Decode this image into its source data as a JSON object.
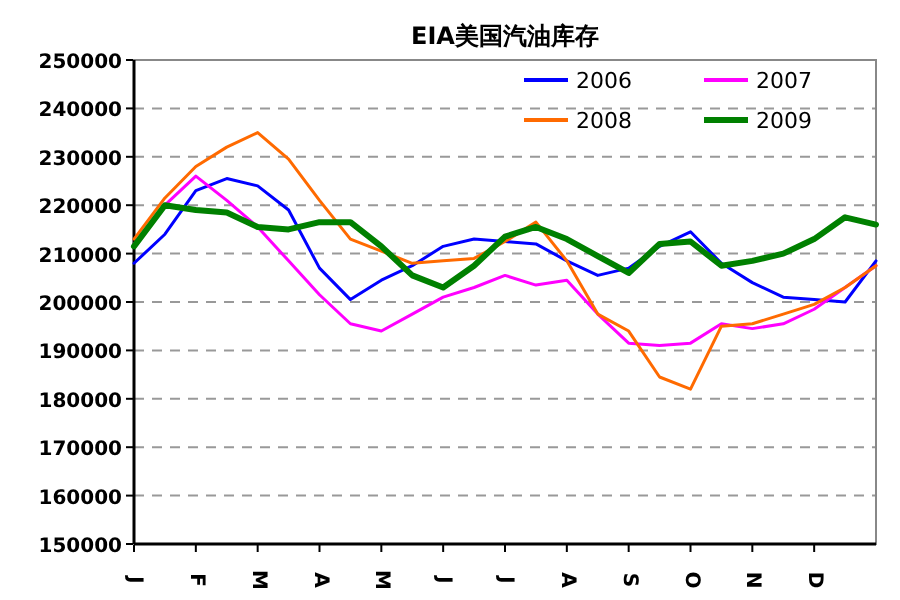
{
  "chart_data": {
    "type": "line",
    "title": "EIA美国汽油库存",
    "categories": [
      "J",
      null,
      "F",
      null,
      "M",
      null,
      "A",
      null,
      "M",
      null,
      "J",
      null,
      "J",
      null,
      "A",
      null,
      "S",
      null,
      "O",
      null,
      "N",
      null,
      "D",
      null,
      null
    ],
    "ylim": [
      150000,
      250000
    ],
    "yticks": [
      150000,
      160000,
      170000,
      180000,
      190000,
      200000,
      210000,
      220000,
      230000,
      240000,
      250000
    ],
    "grid": "y",
    "legend": "top right",
    "marker": "none",
    "line_style": "solid",
    "series": [
      {
        "name": "2006",
        "color": "#0000ff",
        "values": [
          208000,
          214000,
          223000,
          225500,
          224000,
          219000,
          207000,
          200500,
          204500,
          207500,
          211500,
          213000,
          212500,
          212000,
          208500,
          205500,
          207000,
          211500,
          214500,
          208000,
          204000,
          201000,
          200500,
          200000,
          208500
        ]
      },
      {
        "name": "2007",
        "color": "#ff00ff",
        "values": [
          212000,
          220000,
          226000,
          221000,
          215500,
          208500,
          201500,
          195500,
          194000,
          197500,
          201000,
          203000,
          205500,
          203500,
          204500,
          197500,
          191500,
          191000,
          191500,
          195500,
          194500,
          195500,
          198500,
          203000,
          207500
        ]
      },
      {
        "name": "2008",
        "color": "#ff6a00",
        "values": [
          213000,
          221500,
          228000,
          232000,
          235000,
          229500,
          221000,
          213000,
          210500,
          208000,
          208500,
          209000,
          212500,
          216500,
          208500,
          197500,
          194000,
          184500,
          182000,
          195000,
          195500,
          197500,
          199500,
          203000,
          207500
        ]
      },
      {
        "name": "2009",
        "color": "#008000",
        "values": [
          211500,
          220000,
          219000,
          218500,
          215500,
          215000,
          216500,
          216500,
          211500,
          205500,
          203000,
          207500,
          213500,
          215500,
          213000,
          209500,
          206000,
          212000,
          212500,
          207500,
          208500,
          210000,
          213000,
          217500,
          216000
        ]
      }
    ]
  }
}
